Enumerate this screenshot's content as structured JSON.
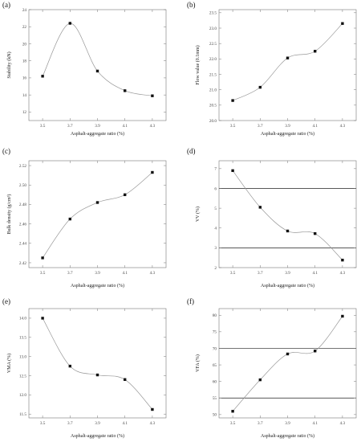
{
  "chart_data": [
    {
      "panel": "(a)",
      "type": "line",
      "x": [
        3.5,
        3.7,
        3.9,
        4.1,
        4.3
      ],
      "y": [
        16.2,
        22.4,
        16.8,
        14.5,
        13.9
      ],
      "xlabel": "Asphalt-aggregate ratio (%)",
      "ylabel": "Stability (kN)",
      "xticks": [
        "3.5",
        "3.7",
        "3.9",
        "4.1",
        "4.3"
      ],
      "yticks": [
        12,
        14,
        16,
        18,
        20,
        22,
        24
      ],
      "ytick_labels": [
        "12",
        "14",
        "16",
        "18",
        "20",
        "22",
        "24"
      ],
      "xlim": [
        3.4,
        4.4
      ],
      "ylim": [
        11,
        24
      ],
      "hlines": []
    },
    {
      "panel": "(b)",
      "type": "line",
      "x": [
        3.5,
        3.7,
        3.9,
        4.1,
        4.3
      ],
      "y": [
        20.65,
        21.08,
        22.03,
        22.25,
        23.15
      ],
      "xlabel": "Asphalt-aggregate ratio (%)",
      "ylabel": "Flow value (0.1mm)",
      "xticks": [
        "3.5",
        "3.7",
        "3.9",
        "4.1",
        "4.3"
      ],
      "yticks": [
        20.0,
        20.5,
        21.0,
        21.5,
        22.0,
        22.5,
        23.0,
        23.5
      ],
      "ytick_labels": [
        "20.0",
        "20.5",
        "21.0",
        "21.5",
        "22.0",
        "22.5",
        "23.0",
        "23.5"
      ],
      "xlim": [
        3.4,
        4.4
      ],
      "ylim": [
        20.0,
        23.6
      ],
      "hlines": []
    },
    {
      "panel": "(c)",
      "type": "line",
      "x": [
        3.5,
        3.7,
        3.9,
        4.1,
        4.3
      ],
      "y": [
        2.425,
        2.465,
        2.482,
        2.49,
        2.513
      ],
      "xlabel": "Asphalt-aggregate ratio (%)",
      "ylabel": "Bulk density (g/cm³)",
      "xticks": [
        "3.5",
        "3.7",
        "3.9",
        "4.1",
        "4.3"
      ],
      "yticks": [
        2.42,
        2.44,
        2.46,
        2.48,
        2.5,
        2.52
      ],
      "ytick_labels": [
        "2.42",
        "2.44",
        "2.46",
        "2.48",
        "2.50",
        "2.52"
      ],
      "xlim": [
        3.4,
        4.4
      ],
      "ylim": [
        2.415,
        2.525
      ],
      "hlines": []
    },
    {
      "panel": "(d)",
      "type": "line",
      "x": [
        3.5,
        3.7,
        3.9,
        4.1,
        4.3
      ],
      "y": [
        6.9,
        5.05,
        3.85,
        3.72,
        2.38
      ],
      "xlabel": "Asphalt-aggregate ratio (%)",
      "ylabel": "VV (%)",
      "xticks": [
        "3.5",
        "3.7",
        "3.9",
        "4.1",
        "4.3"
      ],
      "yticks": [
        2,
        3,
        4,
        5,
        6,
        7
      ],
      "ytick_labels": [
        "2",
        "3",
        "4",
        "5",
        "6",
        "7"
      ],
      "xlim": [
        3.4,
        4.4
      ],
      "ylim": [
        2,
        7.4
      ],
      "hlines": [
        3,
        6
      ]
    },
    {
      "panel": "(e)",
      "type": "line",
      "x": [
        3.5,
        3.7,
        3.9,
        4.1,
        4.3
      ],
      "y": [
        14.0,
        12.75,
        12.52,
        12.4,
        11.62
      ],
      "xlabel": "Asphalt-aggregate ratio (%)",
      "ylabel": "VMA (%)",
      "xticks": [
        "3.5",
        "3.7",
        "3.9",
        "4.1",
        "4.3"
      ],
      "yticks": [
        11.5,
        12.0,
        12.5,
        13.0,
        13.5,
        14.0
      ],
      "ytick_labels": [
        "11.5",
        "12.0",
        "12.5",
        "13.0",
        "13.5",
        "14.0"
      ],
      "xlim": [
        3.4,
        4.4
      ],
      "ylim": [
        11.4,
        14.25
      ],
      "hlines": []
    },
    {
      "panel": "(f)",
      "type": "line",
      "x": [
        3.5,
        3.7,
        3.9,
        4.1,
        4.3
      ],
      "y": [
        51.0,
        60.5,
        68.3,
        69.2,
        79.7
      ],
      "xlabel": "Asphalt-aggregate ratio (%)",
      "ylabel": "VFA (%)",
      "xticks": [
        "3.5",
        "3.7",
        "3.9",
        "4.1",
        "4.3"
      ],
      "yticks": [
        50,
        55,
        60,
        65,
        70,
        75,
        80
      ],
      "ytick_labels": [
        "50",
        "55",
        "60",
        "65",
        "70",
        "75",
        "80"
      ],
      "xlim": [
        3.4,
        4.4
      ],
      "ylim": [
        49,
        82
      ],
      "hlines": [
        55,
        70
      ]
    }
  ]
}
